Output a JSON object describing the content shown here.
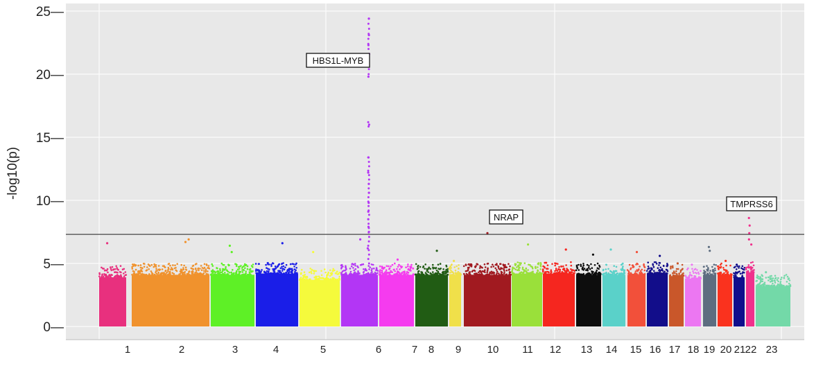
{
  "chart_data": {
    "type": "scatter",
    "subtype": "manhattan",
    "title": "",
    "xlabel": "",
    "ylabel": "-log10(p)",
    "ylim": [
      0,
      25.5
    ],
    "yticks": [
      {
        "value": 0,
        "label": "0—"
      },
      {
        "value": 5,
        "label": "5—"
      },
      {
        "value": 10,
        "label": "10—"
      },
      {
        "value": 15,
        "label": "15—"
      },
      {
        "value": 20,
        "label": "20—"
      },
      {
        "value": 25,
        "label": "25—"
      }
    ],
    "significance_threshold": 7.3,
    "grid": true,
    "chromosomes": [
      {
        "name": "1",
        "label": "1",
        "color": "#e8307e",
        "base_max": 4.8,
        "peaks": [
          6.6
        ]
      },
      {
        "name": "2",
        "label": "2",
        "color": "#f0922d",
        "base_max": 5.0,
        "peaks": [
          6.9,
          6.7
        ]
      },
      {
        "name": "3",
        "label": "3",
        "color": "#5ef026",
        "base_max": 5.0,
        "peaks": [
          6.4,
          5.9
        ]
      },
      {
        "name": "4",
        "label": "4",
        "color": "#1a1ee8",
        "base_max": 5.1,
        "peaks": [
          6.6
        ]
      },
      {
        "name": "5",
        "label": "5",
        "color": "#f5fa3c",
        "base_max": 4.6,
        "peaks": [
          5.9
        ]
      },
      {
        "name": "6",
        "label": "6",
        "color": "#b336f5",
        "base_max": 5.0,
        "peaks": [
          24.4,
          23.1,
          22.3,
          21.6,
          20.8,
          19.8,
          16.0,
          13.4,
          12.2,
          11.3,
          10.6,
          9.8,
          9.1,
          8.5,
          7.9,
          7.5,
          6.9,
          6.2
        ]
      },
      {
        "name": "7",
        "label": "7",
        "color": "#f53bef",
        "base_max": 5.0,
        "peaks": [
          5.3
        ]
      },
      {
        "name": "8",
        "label": "8",
        "color": "#215c14",
        "base_max": 5.0,
        "peaks": [
          6.0
        ]
      },
      {
        "name": "9",
        "label": "9",
        "color": "#f0e04a",
        "base_max": 5.0,
        "peaks": [
          5.2
        ]
      },
      {
        "name": "10",
        "label": "10",
        "color": "#a11a20",
        "base_max": 5.0,
        "peaks": [
          7.4
        ]
      },
      {
        "name": "11",
        "label": "11",
        "color": "#9ae03a",
        "base_max": 5.1,
        "peaks": [
          6.5
        ]
      },
      {
        "name": "12",
        "label": "12",
        "color": "#f5261f",
        "base_max": 5.1,
        "peaks": [
          6.1
        ]
      },
      {
        "name": "13",
        "label": "13",
        "color": "#0d0d0d",
        "base_max": 5.0,
        "peaks": [
          5.7
        ]
      },
      {
        "name": "14",
        "label": "14",
        "color": "#5ad1c9",
        "base_max": 5.0,
        "peaks": [
          6.1
        ]
      },
      {
        "name": "15",
        "label": "15",
        "color": "#f2503a",
        "base_max": 5.0,
        "peaks": [
          5.9
        ]
      },
      {
        "name": "16",
        "label": "16",
        "color": "#120d8a",
        "base_max": 5.1,
        "peaks": [
          5.6
        ]
      },
      {
        "name": "17",
        "label": "17",
        "color": "#c9572a",
        "base_max": 4.9,
        "peaks": [
          5.0
        ]
      },
      {
        "name": "18",
        "label": "18",
        "color": "#ec77f2",
        "base_max": 4.7,
        "peaks": [
          4.9
        ]
      },
      {
        "name": "19",
        "label": "19",
        "color": "#5d6d80",
        "base_max": 5.0,
        "peaks": [
          6.3,
          6.0
        ]
      },
      {
        "name": "20",
        "label": "20",
        "color": "#fa321e",
        "base_max": 5.0,
        "peaks": [
          5.2
        ]
      },
      {
        "name": "21",
        "label": "21",
        "color": "#100e8c",
        "base_max": 4.8,
        "peaks": [
          4.9
        ]
      },
      {
        "name": "22",
        "label": "22",
        "color": "#f0318c",
        "base_max": 5.2,
        "peaks": [
          8.6,
          8.0,
          7.4,
          6.9,
          6.5
        ]
      },
      {
        "name": "23",
        "label": "23",
        "color": "#73d9a8",
        "base_max": 4.1,
        "peaks": [
          4.3
        ]
      }
    ],
    "annotations": [
      {
        "label": "HBS1L-MYB",
        "chromosome": "6",
        "y": 24.4
      },
      {
        "label": "NRAP",
        "chromosome": "10",
        "y": 7.4
      },
      {
        "label": "TMPRSS6",
        "chromosome": "22",
        "y": 8.6
      }
    ]
  }
}
